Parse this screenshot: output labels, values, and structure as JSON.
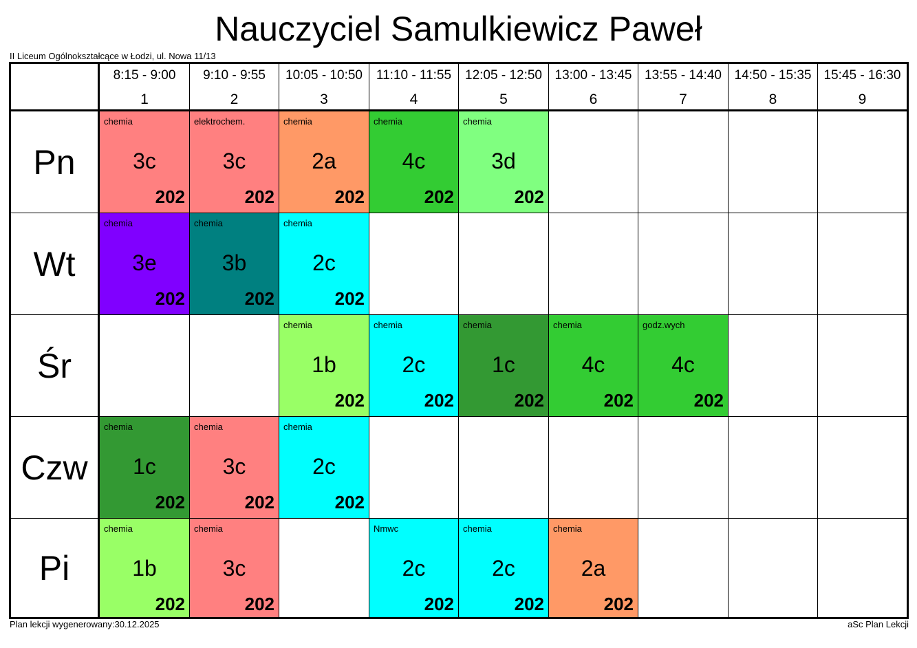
{
  "title": "Nauczyciel Samulkiewicz Paweł",
  "school": "II Liceum Ogólnokształcące w Łodzi, ul. Nowa 11/13",
  "footer": {
    "generated": "Plan lekcji wygenerowany:30.12.2025",
    "brand": "aSc Plan Lekcji"
  },
  "periods": [
    {
      "time": "8:15 - 9:00",
      "num": "1"
    },
    {
      "time": "9:10 - 9:55",
      "num": "2"
    },
    {
      "time": "10:05 - 10:50",
      "num": "3"
    },
    {
      "time": "11:10 - 11:55",
      "num": "4"
    },
    {
      "time": "12:05 - 12:50",
      "num": "5"
    },
    {
      "time": "13:00 - 13:45",
      "num": "6"
    },
    {
      "time": "13:55 - 14:40",
      "num": "7"
    },
    {
      "time": "14:50 - 15:35",
      "num": "8"
    },
    {
      "time": "15:45 - 16:30",
      "num": "9"
    }
  ],
  "days": [
    "Pn",
    "Wt",
    "Śr",
    "Czw",
    "Pi"
  ],
  "lessons": [
    [
      {
        "subject": "chemia",
        "class": "3c",
        "room": "202",
        "color": "#ff8080"
      },
      {
        "subject": "elektrochem.",
        "class": "3c",
        "room": "202",
        "color": "#ff8080"
      },
      {
        "subject": "chemia",
        "class": "2a",
        "room": "202",
        "color": "#ff9966"
      },
      {
        "subject": "chemia",
        "class": "4c",
        "room": "202",
        "color": "#33cc33"
      },
      {
        "subject": "chemia",
        "class": "3d",
        "room": "202",
        "color": "#80ff80"
      },
      null,
      null,
      null,
      null
    ],
    [
      {
        "subject": "chemia",
        "class": "3e",
        "room": "202",
        "color": "#8000ff"
      },
      {
        "subject": "chemia",
        "class": "3b",
        "room": "202",
        "color": "#008080"
      },
      {
        "subject": "chemia",
        "class": "2c",
        "room": "202",
        "color": "#00ffff"
      },
      null,
      null,
      null,
      null,
      null,
      null
    ],
    [
      null,
      null,
      {
        "subject": "chemia",
        "class": "1b",
        "room": "202",
        "color": "#99ff66"
      },
      {
        "subject": "chemia",
        "class": "2c",
        "room": "202",
        "color": "#00ffff"
      },
      {
        "subject": "chemia",
        "class": "1c",
        "room": "202",
        "color": "#339933"
      },
      {
        "subject": "chemia",
        "class": "4c",
        "room": "202",
        "color": "#33cc33"
      },
      {
        "subject": "godz.wych",
        "class": "4c",
        "room": "202",
        "color": "#33cc33"
      },
      null,
      null
    ],
    [
      {
        "subject": "chemia",
        "class": "1c",
        "room": "202",
        "color": "#339933"
      },
      {
        "subject": "chemia",
        "class": "3c",
        "room": "202",
        "color": "#ff8080"
      },
      {
        "subject": "chemia",
        "class": "2c",
        "room": "202",
        "color": "#00ffff"
      },
      null,
      null,
      null,
      null,
      null,
      null
    ],
    [
      {
        "subject": "chemia",
        "class": "1b",
        "room": "202",
        "color": "#99ff66"
      },
      {
        "subject": "chemia",
        "class": "3c",
        "room": "202",
        "color": "#ff8080"
      },
      null,
      {
        "subject": "Nmwc",
        "class": "2c",
        "room": "202",
        "color": "#00ffff"
      },
      {
        "subject": "chemia",
        "class": "2c",
        "room": "202",
        "color": "#00ffff"
      },
      {
        "subject": "chemia",
        "class": "2a",
        "room": "202",
        "color": "#ff9966"
      },
      null,
      null,
      null
    ]
  ]
}
